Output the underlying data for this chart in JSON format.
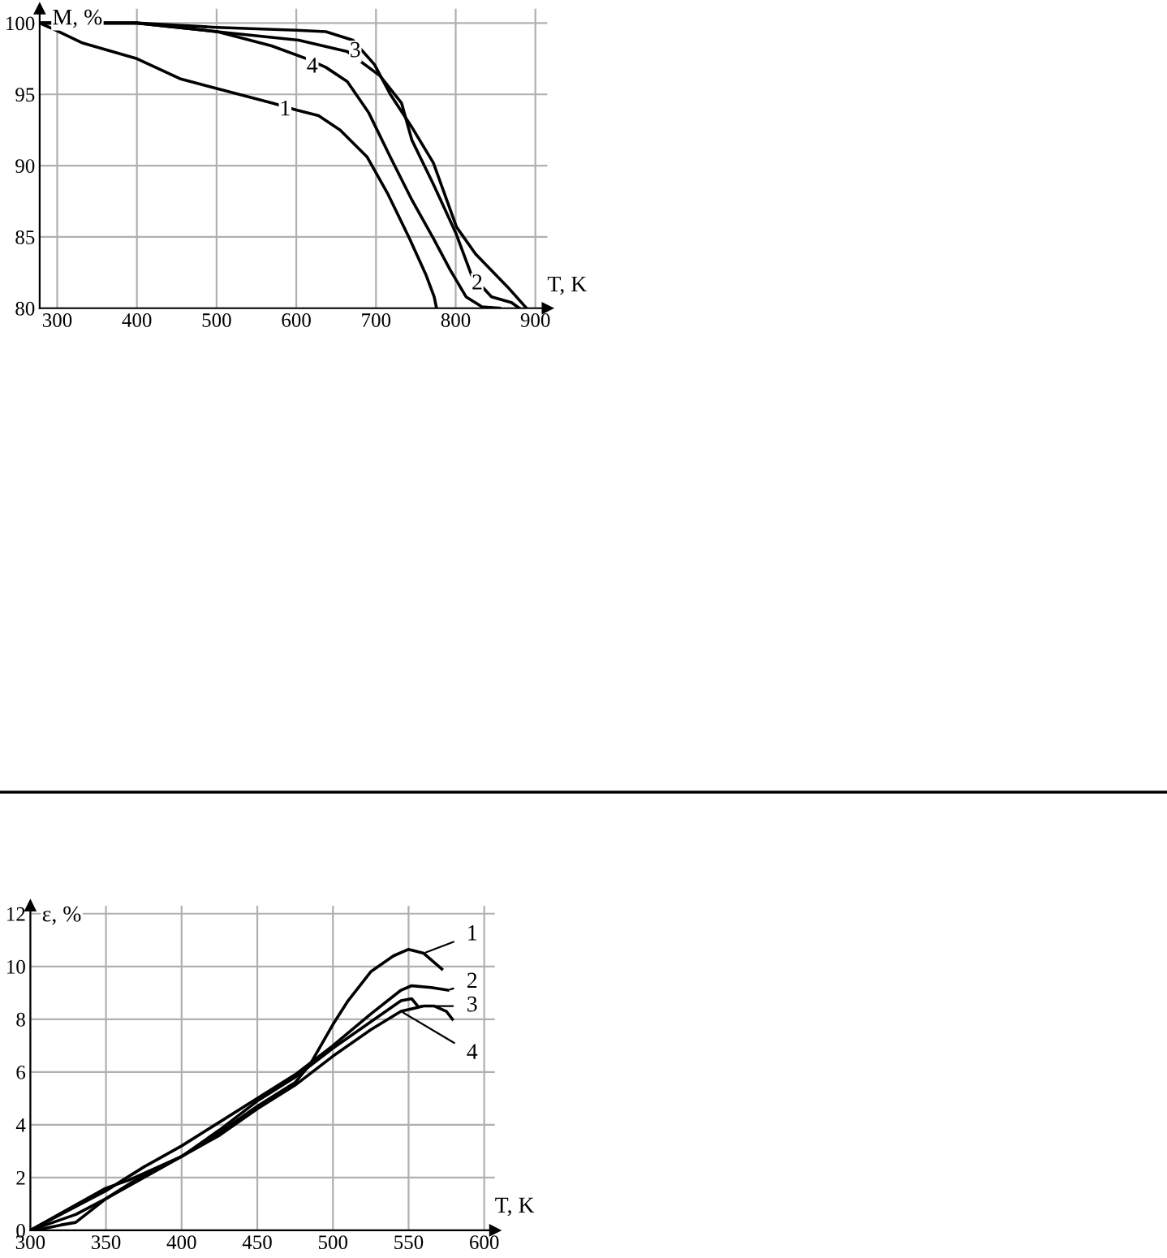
{
  "chart_data": [
    {
      "type": "line",
      "xlabel": "T, K",
      "ylabel": "M, %",
      "xlim": [
        278,
        915
      ],
      "ylim": [
        80,
        101
      ],
      "xticks": [
        300,
        400,
        500,
        600,
        700,
        800,
        900
      ],
      "yticks": [
        80,
        85,
        90,
        95,
        100
      ],
      "grid": true,
      "line_style": "solid",
      "series": [
        {
          "color": "#000000",
          "x": [
            278,
            298,
            332,
            400,
            454,
            501,
            569,
            600,
            628,
            655,
            689,
            715,
            742,
            763,
            773,
            776
          ],
          "values": [
            100,
            99.5,
            98.6,
            97.5,
            96.1,
            95.4,
            94.4,
            93.9,
            93.5,
            92.5,
            90.6,
            88,
            84.9,
            82.3,
            80.8,
            80
          ]
        },
        {
          "color": "#000000",
          "x": [
            278,
            400,
            500,
            603,
            664,
            705,
            732,
            745,
            772,
            800,
            820,
            845,
            870,
            880
          ],
          "values": [
            100,
            100,
            99.4,
            98.8,
            98,
            96.3,
            94.4,
            91.8,
            88.7,
            85.3,
            82.3,
            80.8,
            80.4,
            80
          ]
        },
        {
          "color": "#000000",
          "x": [
            278,
            400,
            500,
            600,
            637,
            671,
            698,
            718,
            745,
            772,
            801,
            825,
            865,
            889
          ],
          "values": [
            100,
            100,
            99.7,
            99.5,
            99.4,
            98.8,
            97.1,
            95,
            92.7,
            90.2,
            85.7,
            83.8,
            81.5,
            80
          ]
        },
        {
          "color": "#000000",
          "x": [
            278,
            400,
            501,
            569,
            613,
            637,
            664,
            691,
            718,
            745,
            772,
            793,
            813,
            833,
            855
          ],
          "values": [
            100,
            100,
            99.4,
            98.4,
            97.5,
            96.9,
            95.9,
            93.7,
            90.6,
            87.6,
            84.9,
            82.7,
            80.8,
            80.1,
            80
          ]
        }
      ],
      "annotations": [
        {
          "text": "1",
          "x": 586,
          "y": 93.9
        },
        {
          "text": "2",
          "x": 827,
          "y": 81.7
        },
        {
          "text": "3",
          "x": 674,
          "y": 98.0
        },
        {
          "text": "4",
          "x": 620,
          "y": 96.9
        }
      ]
    },
    {
      "type": "line",
      "xlabel": "T, K",
      "ylabel": "ε, %",
      "xlim": [
        300,
        607
      ],
      "ylim": [
        0,
        12.3
      ],
      "xticks": [
        300,
        350,
        400,
        450,
        500,
        550,
        600
      ],
      "yticks": [
        0,
        2,
        4,
        6,
        8,
        10,
        12
      ],
      "grid": true,
      "line_style": "solid",
      "series": [
        {
          "color": "#000000",
          "x": [
            300,
            310,
            330,
            350,
            375,
            400,
            425,
            450,
            475,
            485,
            500,
            510,
            525,
            540,
            550,
            560,
            572
          ],
          "values": [
            0,
            0.2,
            0.6,
            1.2,
            2.0,
            2.8,
            3.7,
            4.7,
            5.6,
            6.3,
            7.8,
            8.7,
            9.8,
            10.4,
            10.65,
            10.5,
            9.9
          ]
        },
        {
          "color": "#000000",
          "x": [
            300,
            320,
            350,
            375,
            400,
            425,
            450,
            475,
            500,
            525,
            545,
            552,
            565,
            576
          ],
          "values": [
            0,
            0.6,
            1.5,
            2.4,
            3.2,
            4.1,
            5.0,
            5.9,
            7.0,
            8.2,
            9.1,
            9.27,
            9.2,
            9.1
          ]
        },
        {
          "color": "#000000",
          "x": [
            303,
            320,
            330,
            350,
            375,
            400,
            425,
            450,
            475,
            500,
            525,
            545,
            552,
            556
          ],
          "values": [
            0,
            0.2,
            0.3,
            1.2,
            2.1,
            2.8,
            3.8,
            4.9,
            5.8,
            6.9,
            7.9,
            8.7,
            8.78,
            8.5
          ]
        },
        {
          "color": "#000000",
          "x": [
            300,
            325,
            350,
            365,
            400,
            425,
            450,
            475,
            500,
            525,
            545,
            560,
            567,
            575,
            579
          ],
          "values": [
            0,
            0.8,
            1.6,
            1.9,
            2.8,
            3.6,
            4.6,
            5.5,
            6.6,
            7.6,
            8.3,
            8.5,
            8.5,
            8.3,
            8.0
          ]
        }
      ],
      "annotations": [
        {
          "text": "1",
          "x": 560,
          "y": 10.5
        },
        {
          "text": "2",
          "x": 576,
          "y": 9.1
        },
        {
          "text": "3",
          "x": 556,
          "y": 8.5
        },
        {
          "text": "4",
          "x": 545,
          "y": 8.3
        }
      ]
    }
  ]
}
